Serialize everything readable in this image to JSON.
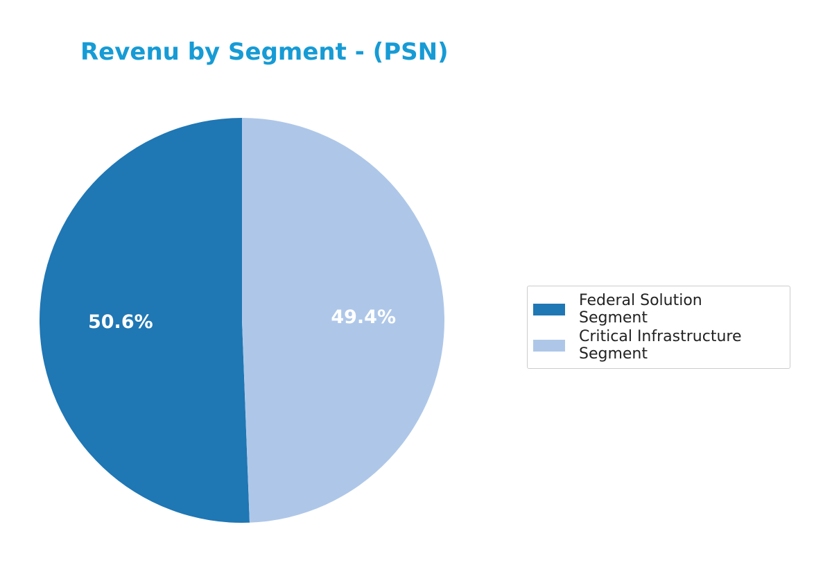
{
  "chart_data": {
    "type": "pie",
    "title": "Revenu by Segment - (PSN)",
    "categories": [
      "Federal Solution Segment",
      "Critical Infrastructure Segment"
    ],
    "values": [
      50.6,
      49.4
    ],
    "value_labels": [
      "50.6%",
      "49.4%"
    ],
    "colors": [
      "#1f77b4",
      "#aec7e8"
    ],
    "start_angle": 90,
    "counterclockwise": true,
    "legend": "right"
  }
}
